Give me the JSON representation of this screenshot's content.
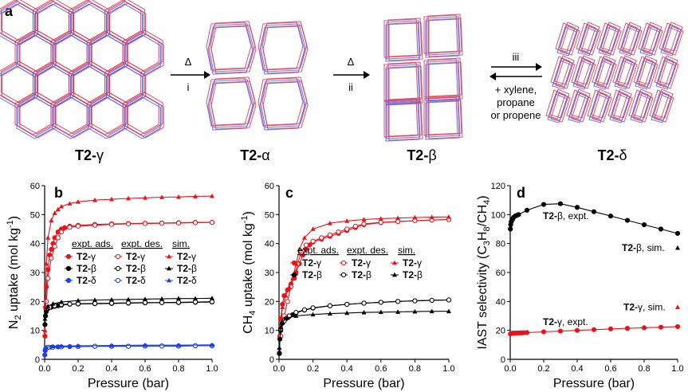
{
  "top": {
    "panel_letter": "a",
    "structures": [
      {
        "label_bold": "T2-",
        "label_greek": "γ"
      },
      {
        "label_bold": "T2-",
        "label_greek": "α"
      },
      {
        "label_bold": "T2-",
        "label_greek": "β"
      },
      {
        "label_bold": "T2-",
        "label_greek": "δ"
      }
    ],
    "arrows": [
      {
        "top": "Δ",
        "bottom": "i"
      },
      {
        "top": "Δ",
        "bottom": "ii"
      },
      {
        "top": "iii",
        "bottom_lines": [
          "+ xylene,",
          "propane",
          "or propene"
        ]
      }
    ]
  },
  "colors": {
    "red": "#e8141c",
    "black": "#000000",
    "blue": "#1d3ee8",
    "crystal_red": "#e0405a",
    "crystal_blue": "#5a6de0"
  },
  "chart_data": [
    {
      "type": "line",
      "panel": "b",
      "xlabel": "Pressure (bar)",
      "ylabel_parts": [
        "N",
        "2",
        " uptake (mol kg",
        "-1",
        ")"
      ],
      "xlim": [
        0,
        1.0
      ],
      "ylim": [
        0,
        60
      ],
      "xticks": [
        "0.0",
        "0.2",
        "0.4",
        "0.6",
        "0.8",
        "1.0"
      ],
      "yticks": [
        "0",
        "10",
        "20",
        "30",
        "40",
        "50",
        "60"
      ],
      "legend": {
        "headers": [
          "expt. ads.",
          "expt. des.",
          "sim."
        ],
        "rows": [
          {
            "label_bold": "T2-",
            "label_greek": "γ",
            "color": "#e8141c"
          },
          {
            "label_bold": "T2-",
            "label_greek": "β",
            "color": "#000000"
          },
          {
            "label_bold": "T2-",
            "label_greek": "δ",
            "color": "#1d3ee8"
          }
        ]
      },
      "series": [
        {
          "name": "T2-γ expt. ads.",
          "color": "#e8141c",
          "marker": "filled-circle",
          "x": [
            0.002,
            0.005,
            0.01,
            0.02,
            0.03,
            0.04,
            0.05,
            0.06,
            0.08,
            0.1,
            0.12,
            0.15,
            0.2,
            0.3,
            0.4,
            0.5,
            0.6,
            0.7,
            0.8,
            0.9,
            1.0
          ],
          "y": [
            8,
            18,
            25,
            31,
            36,
            38,
            40,
            42,
            44,
            45,
            45.5,
            46,
            46.3,
            46.6,
            46.8,
            46.9,
            47,
            47.1,
            47.2,
            47.3,
            47.3
          ]
        },
        {
          "name": "T2-γ expt. des.",
          "color": "#e8141c",
          "marker": "open-circle",
          "x": [
            1.0,
            0.9,
            0.8,
            0.7,
            0.6,
            0.5,
            0.4,
            0.3,
            0.2,
            0.15,
            0.1,
            0.08,
            0.06,
            0.04,
            0.02,
            0.01
          ],
          "y": [
            47.3,
            47.2,
            47.1,
            47,
            46.9,
            46.8,
            46.6,
            46.3,
            46,
            45.6,
            44,
            42,
            39,
            35,
            28,
            20
          ]
        },
        {
          "name": "T2-γ sim.",
          "color": "#e8141c",
          "marker": "triangle",
          "x": [
            0.002,
            0.01,
            0.02,
            0.04,
            0.06,
            0.08,
            0.1,
            0.15,
            0.2,
            0.3,
            0.4,
            0.5,
            0.6,
            0.7,
            0.8,
            0.9,
            1.0
          ],
          "y": [
            10,
            33,
            42,
            48,
            50.5,
            51.8,
            52.8,
            53.8,
            54.4,
            55,
            55.3,
            55.6,
            55.8,
            56,
            56.1,
            56.3,
            56.4
          ]
        },
        {
          "name": "T2-β expt. ads.",
          "color": "#000000",
          "marker": "filled-circle",
          "x": [
            0.002,
            0.005,
            0.01,
            0.02,
            0.04,
            0.06,
            0.08,
            0.1,
            0.15,
            0.2,
            0.3,
            0.4,
            0.5,
            0.6,
            0.7,
            0.8,
            0.9,
            1.0
          ],
          "y": [
            12,
            15,
            16.5,
            17.5,
            18,
            18.3,
            18.5,
            18.7,
            19,
            19.1,
            19.2,
            19.3,
            19.4,
            19.5,
            19.6,
            19.6,
            19.7,
            19.8
          ]
        },
        {
          "name": "T2-β expt. des.",
          "color": "#000000",
          "marker": "open-circle",
          "x": [
            1.0,
            0.9,
            0.8,
            0.7,
            0.6,
            0.5,
            0.4,
            0.3,
            0.2,
            0.15,
            0.1,
            0.06,
            0.03,
            0.01
          ],
          "y": [
            19.9,
            19.8,
            19.7,
            19.6,
            19.6,
            19.5,
            19.4,
            19.3,
            19.2,
            19.1,
            18.9,
            18.5,
            18,
            17
          ]
        },
        {
          "name": "T2-β sim.",
          "color": "#000000",
          "marker": "triangle",
          "x": [
            0.002,
            0.01,
            0.02,
            0.05,
            0.1,
            0.2,
            0.3,
            0.4,
            0.5,
            0.6,
            0.7,
            0.8,
            0.9,
            1.0
          ],
          "y": [
            14,
            17,
            18.3,
            19.2,
            19.8,
            20.3,
            20.5,
            20.6,
            20.7,
            20.8,
            20.9,
            21,
            21,
            21.1
          ]
        },
        {
          "name": "T2-δ expt. ads.",
          "color": "#1d3ee8",
          "marker": "filled-circle",
          "x": [
            0.001,
            0.003,
            0.006,
            0.01,
            0.02,
            0.04,
            0.08,
            0.15,
            0.2,
            0.3,
            0.4,
            0.5,
            0.6,
            0.7,
            0.8,
            0.9,
            1.0
          ],
          "y": [
            1.5,
            3,
            3.6,
            3.9,
            4.1,
            4.2,
            4.3,
            4.4,
            4.4,
            4.5,
            4.5,
            4.5,
            4.6,
            4.6,
            4.6,
            4.7,
            4.7
          ]
        },
        {
          "name": "T2-δ expt. des.",
          "color": "#1d3ee8",
          "marker": "open-circle",
          "x": [
            1.0,
            0.9,
            0.8,
            0.7,
            0.6,
            0.5,
            0.4,
            0.3,
            0.2,
            0.1,
            0.05,
            0.02
          ],
          "y": [
            4.7,
            4.7,
            4.6,
            4.6,
            4.6,
            4.5,
            4.5,
            4.5,
            4.4,
            4.3,
            4.2,
            4.1
          ]
        },
        {
          "name": "T2-δ sim.",
          "color": "#1d3ee8",
          "marker": "triangle",
          "x": [
            0.002,
            0.01,
            0.05,
            0.1,
            0.2,
            0.4,
            0.6,
            0.8,
            1.0
          ],
          "y": [
            3.5,
            4.2,
            4.5,
            4.6,
            4.7,
            4.8,
            4.9,
            4.9,
            5.0
          ]
        }
      ]
    },
    {
      "type": "line",
      "panel": "c",
      "xlabel": "Pressure (bar)",
      "ylabel_parts": [
        "CH",
        "4",
        " uptake (mol kg",
        "-1",
        ")"
      ],
      "xlim": [
        0,
        1.0
      ],
      "ylim": [
        0,
        60
      ],
      "xticks": [
        "0.0",
        "0.2",
        "0.4",
        "0.6",
        "0.8",
        "1.0"
      ],
      "yticks": [
        "0",
        "10",
        "20",
        "30",
        "40",
        "50",
        "60"
      ],
      "legend": {
        "headers": [
          "expt. ads.",
          "expt. des.",
          "sim."
        ],
        "rows": [
          {
            "label_bold": "T2-",
            "label_greek": "γ",
            "color": "#e8141c"
          },
          {
            "label_bold": "T2-",
            "label_greek": "β",
            "color": "#000000"
          }
        ]
      },
      "series": [
        {
          "name": "T2-γ expt. ads.",
          "color": "#e8141c",
          "marker": "filled-circle",
          "x": [
            0.002,
            0.005,
            0.01,
            0.02,
            0.03,
            0.05,
            0.07,
            0.09,
            0.1,
            0.12,
            0.14,
            0.16,
            0.18,
            0.2,
            0.25,
            0.3,
            0.35,
            0.4,
            0.45,
            0.5,
            0.6,
            0.7,
            0.8,
            0.9,
            1.0
          ],
          "y": [
            2,
            8,
            14,
            19,
            22,
            24,
            26,
            28,
            30,
            33,
            36,
            38,
            39.5,
            40.5,
            41.5,
            42.5,
            43.5,
            44.5,
            45.5,
            46.5,
            47.2,
            47.6,
            47.9,
            48.1,
            48.3
          ]
        },
        {
          "name": "T2-γ expt. des.",
          "color": "#e8141c",
          "marker": "open-circle",
          "x": [
            1.0,
            0.9,
            0.8,
            0.7,
            0.6,
            0.5,
            0.45,
            0.4,
            0.35,
            0.3,
            0.25,
            0.2,
            0.16,
            0.13,
            0.11,
            0.09,
            0.07,
            0.05,
            0.03,
            0.01
          ],
          "y": [
            48.3,
            48.1,
            47.9,
            47.6,
            47.3,
            46.8,
            46,
            45,
            44,
            43,
            42,
            40.8,
            39.5,
            37,
            33,
            29,
            25,
            20,
            15,
            8
          ]
        },
        {
          "name": "T2-γ sim.",
          "color": "#e8141c",
          "marker": "triangle",
          "x": [
            0.002,
            0.01,
            0.02,
            0.04,
            0.06,
            0.08,
            0.1,
            0.12,
            0.15,
            0.2,
            0.3,
            0.4,
            0.5,
            0.6,
            0.7,
            0.8,
            0.9,
            1.0
          ],
          "y": [
            3,
            12,
            18,
            22,
            25,
            28,
            33,
            38,
            42,
            45,
            47,
            47.8,
            48.3,
            48.6,
            48.8,
            49,
            49.1,
            49.2
          ]
        },
        {
          "name": "T2-β expt. ads.",
          "color": "#000000",
          "marker": "filled-circle",
          "x": [
            0.002,
            0.005,
            0.01,
            0.02,
            0.04,
            0.06,
            0.08,
            0.1,
            0.15,
            0.2,
            0.3,
            0.4,
            0.5,
            0.6,
            0.7,
            0.8,
            0.9,
            1.0
          ],
          "y": [
            2,
            7,
            10,
            12.5,
            14,
            14.8,
            15.4,
            16,
            17,
            17.7,
            18.5,
            19,
            19.4,
            19.7,
            20,
            20.2,
            20.4,
            20.5
          ]
        },
        {
          "name": "T2-β expt. des.",
          "color": "#000000",
          "marker": "open-circle",
          "x": [
            1.0,
            0.9,
            0.8,
            0.7,
            0.6,
            0.5,
            0.4,
            0.3,
            0.2,
            0.15,
            0.1,
            0.06,
            0.03,
            0.01
          ],
          "y": [
            20.5,
            20.4,
            20.2,
            20,
            19.7,
            19.4,
            19,
            18.5,
            17.8,
            17.1,
            16.2,
            15,
            13.2,
            10.5
          ]
        },
        {
          "name": "T2-β sim.",
          "color": "#000000",
          "marker": "triangle",
          "x": [
            0.002,
            0.01,
            0.02,
            0.05,
            0.1,
            0.2,
            0.3,
            0.4,
            0.5,
            0.6,
            0.7,
            0.8,
            0.9,
            1.0
          ],
          "y": [
            4,
            11,
            13,
            14.3,
            15,
            15.5,
            15.8,
            16,
            16.2,
            16.3,
            16.4,
            16.5,
            16.6,
            16.6
          ]
        }
      ]
    },
    {
      "type": "line",
      "panel": "d",
      "xlabel": "Pressure (bar)",
      "ylabel_parts": [
        "IAST selectivity (C",
        "3",
        "H",
        "8",
        "/CH",
        "4",
        ")"
      ],
      "xlim": [
        0,
        1.0
      ],
      "ylim": [
        0,
        120
      ],
      "xticks": [
        "0.0",
        "0.2",
        "0.4",
        "0.6",
        "0.8",
        "1.0"
      ],
      "yticks": [
        "0",
        "20",
        "40",
        "60",
        "80",
        "100",
        "120"
      ],
      "series": [
        {
          "name": "T2-β, expt.",
          "color": "#000000",
          "marker": "filled-circle",
          "x": [
            0.001,
            0.003,
            0.006,
            0.01,
            0.015,
            0.02,
            0.03,
            0.04,
            0.05,
            0.1,
            0.2,
            0.3,
            0.4,
            0.5,
            0.6,
            0.7,
            0.8,
            0.9,
            1.0
          ],
          "y": [
            90,
            93,
            95,
            96,
            97,
            98,
            99,
            99.5,
            100,
            103,
            107,
            107.5,
            105,
            102,
            99,
            96,
            93,
            90,
            87
          ]
        },
        {
          "name": "T2-β, sim.",
          "color": "#000000",
          "marker": "triangle",
          "x": [
            1.0
          ],
          "y": [
            77
          ]
        },
        {
          "name": "T2-γ, expt.",
          "color": "#e8141c",
          "marker": "filled-circle",
          "x": [
            0.001,
            0.005,
            0.01,
            0.015,
            0.02,
            0.03,
            0.04,
            0.05,
            0.06,
            0.07,
            0.08,
            0.1,
            0.2,
            0.3,
            0.4,
            0.5,
            0.6,
            0.7,
            0.8,
            0.9,
            1.0
          ],
          "y": [
            17.5,
            17.8,
            18,
            18,
            18.1,
            18.1,
            18.2,
            18.2,
            18.3,
            18.3,
            18.4,
            18.5,
            19,
            19.5,
            20,
            20.5,
            21,
            21.4,
            21.8,
            22.2,
            22.6
          ]
        },
        {
          "name": "T2-γ, sim.",
          "color": "#e8141c",
          "marker": "triangle",
          "x": [
            1.0
          ],
          "y": [
            36
          ]
        }
      ],
      "annotations": [
        {
          "bold": "T2-",
          "greek": "β",
          "rest": ", expt.",
          "at_series": 0
        },
        {
          "bold": "T2-",
          "greek": "β",
          "rest": ", sim.",
          "at_series": 1
        },
        {
          "bold": "T2-",
          "greek": "γ",
          "rest": ", expt.",
          "at_series": 2
        },
        {
          "bold": "T2-",
          "greek": "γ",
          "rest": ", sim.",
          "at_series": 3
        }
      ]
    }
  ]
}
